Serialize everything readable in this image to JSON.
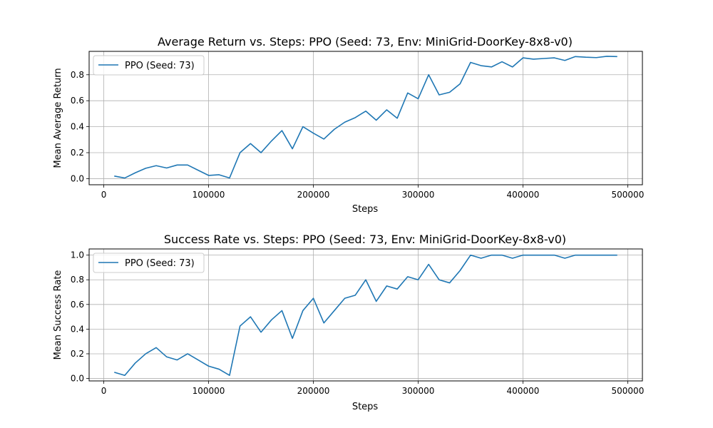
{
  "chart_data": [
    {
      "type": "line",
      "title": "Average Return vs. Steps: PPO (Seed: 73, Env: MiniGrid-DoorKey-8x8-v0)",
      "xlabel": "Steps",
      "ylabel": "Mean Average Return",
      "xlim": [
        -14000,
        514000
      ],
      "ylim": [
        -0.047,
        0.98
      ],
      "xticks": [
        0,
        100000,
        200000,
        300000,
        400000,
        500000
      ],
      "xtick_labels": [
        "0",
        "100000",
        "200000",
        "300000",
        "400000",
        "500000"
      ],
      "yticks": [
        0.0,
        0.2,
        0.4,
        0.6,
        0.8
      ],
      "ytick_labels": [
        "0.0",
        "0.2",
        "0.4",
        "0.6",
        "0.8"
      ],
      "grid": true,
      "legend_position": "upper-left",
      "series": [
        {
          "name": "PPO (Seed: 73)",
          "color": "#1f77b4",
          "x": [
            10000,
            20000,
            30000,
            40000,
            50000,
            60000,
            70000,
            80000,
            90000,
            100000,
            110000,
            120000,
            130000,
            140000,
            150000,
            160000,
            170000,
            180000,
            190000,
            200000,
            210000,
            220000,
            230000,
            240000,
            250000,
            260000,
            270000,
            280000,
            290000,
            300000,
            310000,
            320000,
            330000,
            340000,
            350000,
            360000,
            370000,
            380000,
            390000,
            400000,
            410000,
            420000,
            430000,
            440000,
            450000,
            460000,
            470000,
            480000,
            490000
          ],
          "y": [
            0.02,
            0.005,
            0.045,
            0.08,
            0.1,
            0.082,
            0.105,
            0.105,
            0.065,
            0.025,
            0.03,
            0.005,
            0.2,
            0.27,
            0.2,
            0.29,
            0.37,
            0.23,
            0.4,
            0.35,
            0.305,
            0.38,
            0.435,
            0.47,
            0.52,
            0.45,
            0.53,
            0.465,
            0.66,
            0.615,
            0.8,
            0.645,
            0.665,
            0.73,
            0.895,
            0.87,
            0.86,
            0.9,
            0.86,
            0.93,
            0.92,
            0.925,
            0.93,
            0.91,
            0.94,
            0.935,
            0.932,
            0.942,
            0.94
          ]
        }
      ]
    },
    {
      "type": "line",
      "title": "Success Rate vs. Steps: PPO (Seed: 73, Env: MiniGrid-DoorKey-8x8-v0)",
      "xlabel": "Steps",
      "ylabel": "Mean Success Rate",
      "xlim": [
        -14000,
        514000
      ],
      "ylim": [
        -0.02,
        1.05
      ],
      "xticks": [
        0,
        100000,
        200000,
        300000,
        400000,
        500000
      ],
      "xtick_labels": [
        "0",
        "100000",
        "200000",
        "300000",
        "400000",
        "500000"
      ],
      "yticks": [
        0.0,
        0.2,
        0.4,
        0.6,
        0.8,
        1.0
      ],
      "ytick_labels": [
        "0.0",
        "0.2",
        "0.4",
        "0.6",
        "0.8",
        "1.0"
      ],
      "grid": true,
      "legend_position": "upper-left",
      "series": [
        {
          "name": "PPO (Seed: 73)",
          "color": "#1f77b4",
          "x": [
            10000,
            20000,
            30000,
            40000,
            50000,
            60000,
            70000,
            80000,
            90000,
            100000,
            110000,
            120000,
            130000,
            140000,
            150000,
            160000,
            170000,
            180000,
            190000,
            200000,
            210000,
            220000,
            230000,
            240000,
            250000,
            260000,
            270000,
            280000,
            290000,
            300000,
            310000,
            320000,
            330000,
            340000,
            350000,
            360000,
            370000,
            380000,
            390000,
            400000,
            410000,
            420000,
            430000,
            440000,
            450000,
            460000,
            470000,
            480000,
            490000
          ],
          "y": [
            0.05,
            0.025,
            0.125,
            0.2,
            0.25,
            0.175,
            0.15,
            0.2,
            0.15,
            0.1,
            0.075,
            0.025,
            0.425,
            0.5,
            0.375,
            0.475,
            0.55,
            0.325,
            0.55,
            0.65,
            0.45,
            0.55,
            0.65,
            0.675,
            0.8,
            0.625,
            0.75,
            0.725,
            0.825,
            0.8,
            0.925,
            0.8,
            0.775,
            0.875,
            1.0,
            0.975,
            1.0,
            1.0,
            0.975,
            1.0,
            1.0,
            1.0,
            1.0,
            0.975,
            1.0,
            1.0,
            1.0,
            1.0,
            1.0
          ]
        }
      ]
    }
  ]
}
